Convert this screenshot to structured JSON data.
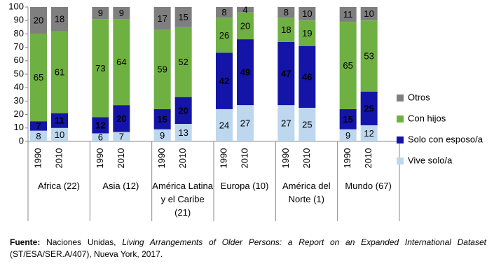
{
  "chart_data": {
    "type": "stacked_bar",
    "categories": [
      "1990",
      "2010",
      "1990",
      "2010",
      "1990",
      "2010",
      "1990",
      "2010",
      "1990",
      "2010",
      "1990",
      "2010"
    ],
    "groups": [
      "Africa (22)",
      "Asia (12)",
      "América Latina y el Caribe (21)",
      "Europa (10)",
      "América del Norte (1)",
      "Mundo (67)"
    ],
    "series": [
      {
        "name": "Vive solo/a",
        "color": "#bdd7ee",
        "values": [
          8,
          10,
          6,
          7,
          9,
          13,
          24,
          27,
          27,
          25,
          9,
          12
        ]
      },
      {
        "name": "Solo con esposo/a",
        "color": "#1414a8",
        "values": [
          7,
          11,
          12,
          20,
          15,
          20,
          42,
          49,
          47,
          46,
          15,
          25
        ]
      },
      {
        "name": "Con hijos",
        "color": "#6fb043",
        "values": [
          65,
          61,
          73,
          64,
          59,
          52,
          26,
          20,
          18,
          19,
          65,
          53
        ]
      },
      {
        "name": "Otros",
        "color": "#7f7f7f",
        "values": [
          20,
          18,
          9,
          9,
          17,
          15,
          8,
          4,
          8,
          10,
          11,
          10
        ]
      }
    ],
    "ylim": [
      0,
      100
    ],
    "yticks": [
      0,
      10,
      20,
      30,
      40,
      50,
      60,
      70,
      80,
      90,
      100
    ],
    "note": [
      "Fuente:",
      "Naciones Unidas,",
      "Living Arrangements of Older Persons: a Report on an Expanded International Dataset",
      "(ST/ESA/SER.A/407), Nueva York, 2017."
    ]
  }
}
